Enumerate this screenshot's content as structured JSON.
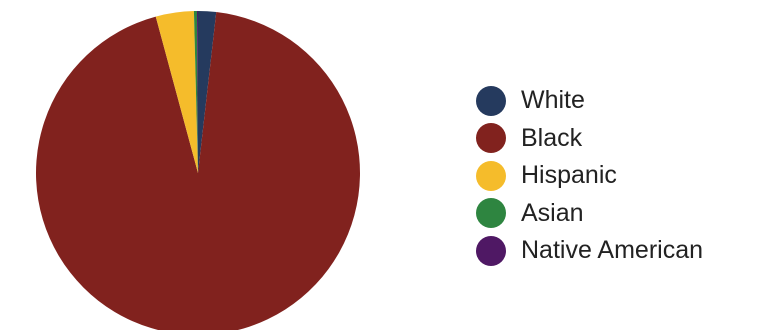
{
  "chart_data": {
    "type": "pie",
    "title": "",
    "legend_position": "right",
    "start_angle_deg": 0,
    "direction": "clockwise",
    "slices": [
      {
        "label": "White",
        "value": 1.8,
        "color": "#253A5E"
      },
      {
        "label": "Black",
        "value": 94.0,
        "color": "#81221E"
      },
      {
        "label": "Hispanic",
        "value": 3.8,
        "color": "#F5BC2B"
      },
      {
        "label": "Asian",
        "value": 0.3,
        "color": "#2E8540"
      },
      {
        "label": "Native American",
        "value": 0.1,
        "color": "#4F1864"
      }
    ]
  }
}
